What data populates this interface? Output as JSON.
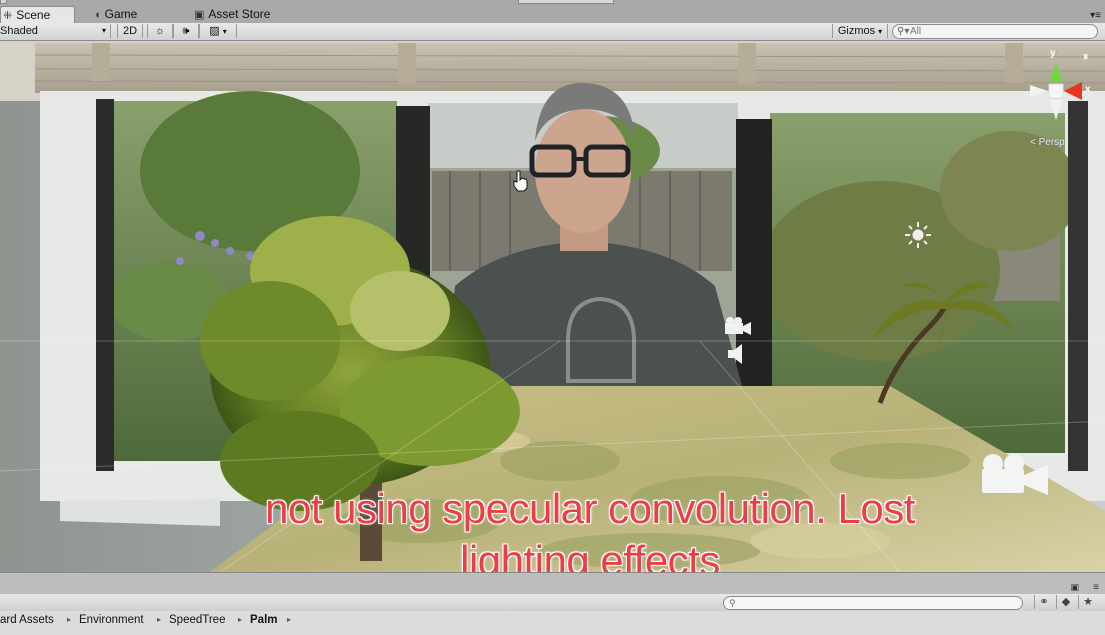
{
  "tabs": [
    {
      "label": "Scene",
      "icon": "scene-grid-icon",
      "active": true
    },
    {
      "label": "Game",
      "icon": "pacman-icon",
      "active": false
    },
    {
      "label": "Asset Store",
      "icon": "store-bag-icon",
      "active": false
    }
  ],
  "toolbar": {
    "shading_mode": "Shaded",
    "mode_2d": "2D",
    "gizmos_label": "Gizmos",
    "search_placeholder": "All"
  },
  "scene": {
    "projection_label": "< Persp",
    "axis_labels": {
      "y": "y",
      "x": "x"
    },
    "caption_line1": "not using specular convolution. Lost",
    "caption_line2": "lighting effects",
    "colors": {
      "caption": "#ee3d47",
      "gizmo_y": "#6fd93b",
      "gizmo_x": "#e8351f"
    }
  },
  "project": {
    "breadcrumb": [
      "ard Assets",
      "Environment",
      "SpeedTree",
      "Palm"
    ],
    "search_placeholder": ""
  }
}
